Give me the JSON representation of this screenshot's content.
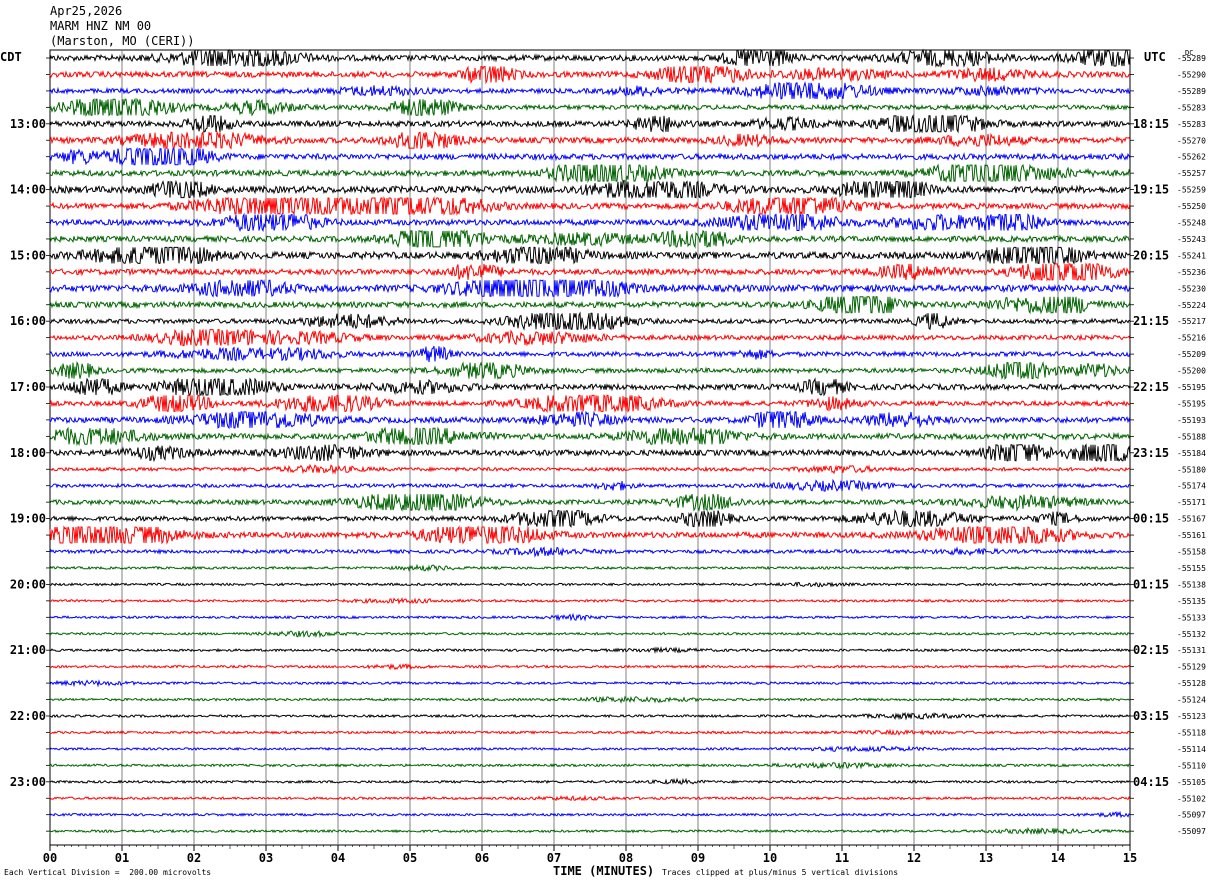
{
  "header": {
    "date": "Apr25,2026",
    "station": "MARM HNZ NM 00",
    "location": "(Marston, MO (CERI))"
  },
  "left_tz": "CDT",
  "right_tz": "UTC",
  "dc_label": "DC",
  "footer": {
    "scale": "Each Vertical Division =  200.00 microvolts",
    "xlabel": "TIME (MINUTES)",
    "clip": "Traces clipped at plus/minus 5 vertical divisions"
  },
  "colors": {
    "trace_cycle": [
      "#000000",
      "#ff0000",
      "#0000ff",
      "#006400"
    ],
    "grid": "#808080"
  },
  "chart_data": {
    "type": "line",
    "x_ticks": [
      "00",
      "01",
      "02",
      "03",
      "04",
      "05",
      "06",
      "07",
      "08",
      "09",
      "10",
      "11",
      "12",
      "13",
      "14",
      "15"
    ],
    "xlim": [
      0,
      15
    ],
    "left_hour_labels": [
      "13:00",
      "14:00",
      "15:00",
      "16:00",
      "17:00",
      "18:00",
      "19:00",
      "20:00",
      "21:00",
      "22:00",
      "23:00"
    ],
    "right_hour_labels": [
      "18:15",
      "19:15",
      "20:15",
      "21:15",
      "22:15",
      "23:15",
      "00:15",
      "01:15",
      "02:15",
      "03:15",
      "04:15"
    ],
    "trace_dc_offsets": [
      "-55289",
      "-55290",
      "-55289",
      "-55283",
      "-55283",
      "-55270",
      "-55262",
      "-55257",
      "-55259",
      "-55250",
      "-55248",
      "-55243",
      "-55241",
      "-55236",
      "-55230",
      "-55224",
      "-55217",
      "-55216",
      "-55209",
      "-55200",
      "-55195",
      "-55195",
      "-55193",
      "-55188",
      "-55184",
      "-55180",
      "-55174",
      "-55171",
      "-55167",
      "-55161",
      "-55158",
      "-55155",
      "-55138",
      "-55135",
      "-55133",
      "-55132",
      "-55131",
      "-55129",
      "-55128",
      "-55124",
      "-55123",
      "-55118",
      "-55114",
      "-55110",
      "-55105",
      "-55102",
      "-55097",
      "-55097"
    ],
    "trace_noise_level": [
      4,
      4,
      3,
      3,
      4,
      4,
      4,
      4,
      5,
      4,
      4,
      4,
      5,
      4,
      5,
      4,
      3,
      3,
      3,
      3,
      4,
      3,
      4,
      4,
      4,
      2,
      2,
      3,
      3,
      4,
      2,
      1,
      1,
      1,
      1,
      1,
      1,
      1,
      1,
      1,
      1,
      1,
      1,
      1,
      1,
      1,
      1,
      1
    ]
  }
}
